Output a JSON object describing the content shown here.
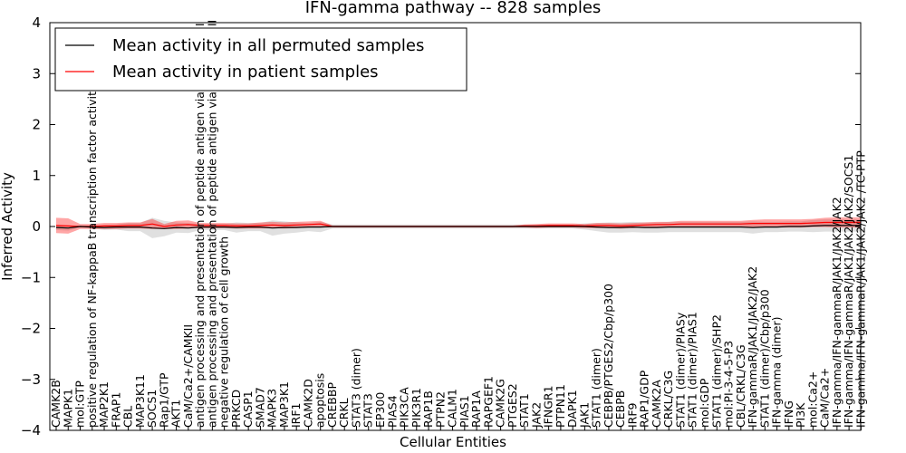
{
  "chart_data": {
    "type": "line",
    "title": "IFN-gamma pathway -- 828 samples",
    "xlabel": "Cellular Entities",
    "ylabel": "Inferred Activity",
    "ylim": [
      -4,
      4
    ],
    "yticks": [
      "−4",
      "−3",
      "−2",
      "−1",
      "0",
      "1",
      "2",
      "3",
      "4"
    ],
    "grid": false,
    "legend_position": "top-left",
    "colors": {
      "permuted": "#000000",
      "patient": "#ff0000",
      "permuted_band": "#bbbbbb",
      "patient_band": "#ff0000"
    },
    "categories": [
      "CAMK2B",
      "MAPK1",
      "mol:GTP",
      "positive regulation of NF-kappaB transcription factor activity",
      "MAP2K1",
      "FRAP1",
      "CBL",
      "MAP3K11",
      "SOCS1",
      "Rap1/GTP",
      "AKT1",
      "CaM/Ca2+/CAMKII",
      "antigen processing and presentation of peptide antigen via MHC class I",
      "antigen processing and presentation of peptide antigen via MHC class II",
      "negative regulation of cell growth",
      "PRKCD",
      "CASP1",
      "SMAD7",
      "MAPK3",
      "MAP3K1",
      "IRF1",
      "CAMK2D",
      "apoptosis",
      "CREBBP",
      "CRKL",
      "STAT3 (dimer)",
      "STAT3",
      "EP300",
      "PIAS4",
      "PIK3CA",
      "PIK3R1",
      "RAP1B",
      "PTPN2",
      "CALM1",
      "PIAS1",
      "RAP1A",
      "RAPGEF1",
      "CAMK2G",
      "PTGES2",
      "STAT1",
      "JAK2",
      "IFNGR1",
      "PTPN11",
      "DAPK1",
      "JAK1",
      "STAT1 (dimer)",
      "CEBPB/PTGES2/Cbp/p300",
      "CEBPB",
      "IRF9",
      "RAP1/GDP",
      "CAMK2A",
      "CRKL/C3G",
      "STAT1 (dimer)/PIASy",
      "STAT1 (dimer)/PIAS1",
      "mol:GDP",
      "STAT1 (dimer)/SHP2",
      "mol:PI-3-4-5-P3",
      "CBL/CRKL/C3G",
      "IFN-gammaR/JAK1/JAK2/JAK2",
      "STAT1 (dimer)/Cbp/p300",
      "IFN-gamma (dimer)",
      "IFNG",
      "PI3K",
      "mol:Ca2+",
      "CaM/Ca2+",
      "IFN-gamma/IFN-gammaR/JAK1/JAK2/JAK2",
      "IFN-gamma/IFN-gammaR/JAK1/JAK2/JAK2/SOCS1",
      "IFN-gamma/IFN-gammaR/JAK1/JAK2/JAK2 /TC-PTP"
    ],
    "series": [
      {
        "name": "Mean activity in all permuted samples",
        "color": "#000000",
        "values": [
          -0.02,
          -0.03,
          0,
          -0.01,
          -0.02,
          -0.01,
          -0.01,
          -0.01,
          -0.03,
          -0.04,
          -0.02,
          -0.03,
          -0.01,
          -0.01,
          -0.01,
          -0.02,
          -0.01,
          -0.01,
          -0.03,
          -0.02,
          -0.02,
          -0.01,
          -0.01,
          0,
          0,
          0,
          0,
          0,
          0,
          0,
          0,
          0,
          0,
          0,
          0,
          0,
          0,
          0,
          0,
          0,
          0,
          0,
          0,
          0,
          0,
          -0.01,
          -0.02,
          -0.02,
          -0.01,
          -0.02,
          -0.02,
          -0.01,
          -0.01,
          -0.01,
          -0.01,
          -0.01,
          -0.01,
          -0.01,
          -0.02,
          -0.01,
          -0.01,
          0,
          0,
          0.01,
          0.02,
          0.02,
          0.02,
          0.02
        ],
        "band": [
          0.05,
          0.05,
          0.02,
          0.03,
          0.05,
          0.05,
          0.08,
          0.08,
          0.2,
          0.15,
          0.1,
          0.1,
          0.06,
          0.06,
          0.06,
          0.1,
          0.08,
          0.08,
          0.15,
          0.12,
          0.1,
          0.08,
          0.1,
          0.04,
          0.04,
          0.04,
          0.04,
          0.04,
          0.04,
          0.04,
          0.04,
          0.04,
          0.04,
          0.04,
          0.04,
          0.04,
          0.04,
          0.04,
          0.04,
          0.04,
          0.04,
          0.04,
          0.04,
          0.04,
          0.06,
          0.08,
          0.1,
          0.1,
          0.1,
          0.1,
          0.1,
          0.1,
          0.1,
          0.1,
          0.1,
          0.1,
          0.1,
          0.1,
          0.12,
          0.1,
          0.1,
          0.1,
          0.1,
          0.12,
          0.12,
          0.12,
          0.12,
          0.12
        ]
      },
      {
        "name": "Mean activity in patient samples",
        "color": "#ff0000",
        "values": [
          0.02,
          0.01,
          0,
          0,
          0.01,
          0.01,
          0.02,
          0.02,
          0.05,
          0,
          0.03,
          0.04,
          0.02,
          0.02,
          0.02,
          0.01,
          0.01,
          0.02,
          0.03,
          0.02,
          0.03,
          0.04,
          0.05,
          0,
          0,
          0,
          0,
          0,
          0,
          0,
          0,
          0,
          0,
          0,
          0,
          0,
          0,
          0,
          0,
          0.01,
          0.01,
          0.02,
          0.02,
          0.02,
          0.01,
          0.02,
          0.02,
          0.01,
          0.02,
          0.03,
          0.04,
          0.04,
          0.05,
          0.05,
          0.05,
          0.05,
          0.05,
          0.05,
          0.06,
          0.06,
          0.06,
          0.06,
          0.06,
          0.07,
          0.08,
          0.08,
          0.08,
          0.08
        ],
        "band": [
          0.15,
          0.15,
          0.05,
          0.05,
          0.06,
          0.06,
          0.06,
          0.06,
          0.1,
          0.05,
          0.08,
          0.08,
          0.05,
          0.05,
          0.05,
          0.05,
          0.05,
          0.06,
          0.06,
          0.06,
          0.06,
          0.06,
          0.06,
          0.02,
          0.02,
          0.02,
          0.02,
          0.02,
          0.02,
          0.02,
          0.02,
          0.02,
          0.02,
          0.02,
          0.02,
          0.02,
          0.02,
          0.02,
          0.02,
          0.03,
          0.04,
          0.04,
          0.04,
          0.04,
          0.04,
          0.05,
          0.05,
          0.05,
          0.05,
          0.05,
          0.05,
          0.05,
          0.06,
          0.06,
          0.06,
          0.06,
          0.06,
          0.06,
          0.07,
          0.08,
          0.08,
          0.08,
          0.08,
          0.08,
          0.09,
          0.1,
          0.1,
          0.1
        ]
      }
    ]
  }
}
